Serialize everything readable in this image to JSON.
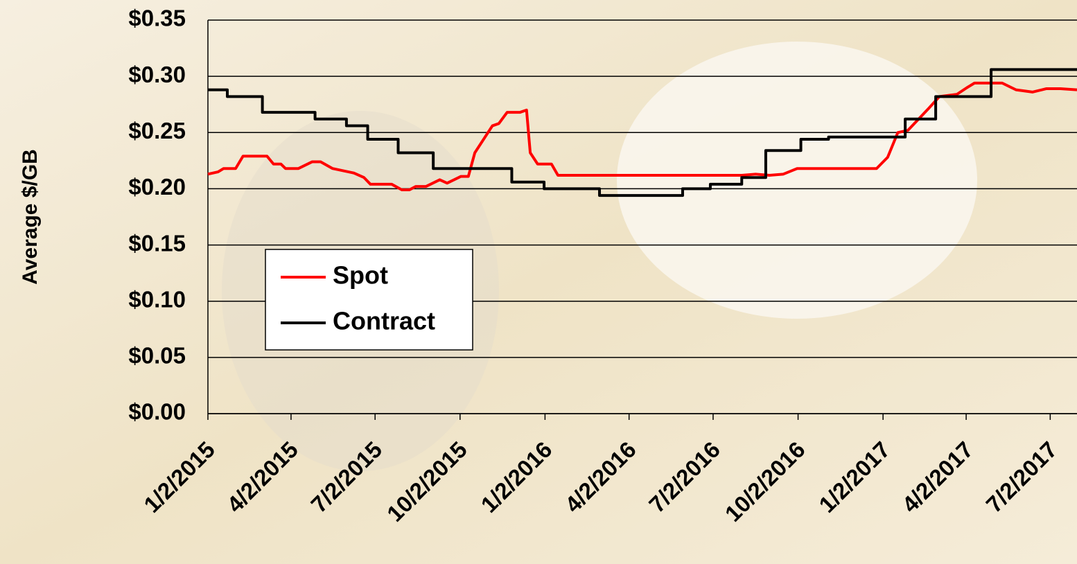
{
  "chart_data": {
    "type": "line",
    "y_label": "Average $/GB",
    "ylim": [
      0,
      0.35
    ],
    "yticks": [
      {
        "value": 0,
        "label": "$0.00"
      },
      {
        "value": 0.05,
        "label": "$0.05"
      },
      {
        "value": 0.1,
        "label": "$0.10"
      },
      {
        "value": 0.15,
        "label": "$0.15"
      },
      {
        "value": 0.2,
        "label": "$0.20"
      },
      {
        "value": 0.25,
        "label": "$0.25"
      },
      {
        "value": 0.3,
        "label": "$0.30"
      },
      {
        "value": 0.35,
        "label": "$0.35"
      }
    ],
    "xlim": [
      "1/2/2015",
      "7/31/2017"
    ],
    "xticks": [
      "1/2/2015",
      "4/2/2015",
      "7/2/2015",
      "10/2/2015",
      "1/2/2016",
      "4/2/2016",
      "7/2/2016",
      "10/2/2016",
      "1/2/2017",
      "4/2/2017",
      "7/2/2017"
    ],
    "grid": true,
    "series": [
      {
        "name": "Spot",
        "color": "#ff0000",
        "step": false,
        "x": [
          "1/2/2015",
          "1/13/2015",
          "1/19/2015",
          "2/1/2015",
          "2/9/2015",
          "3/7/2015",
          "3/14/2015",
          "3/22/2015",
          "3/27/2015",
          "4/10/2015",
          "4/25/2015",
          "5/4/2015",
          "5/17/2015",
          "6/9/2015",
          "6/20/2015",
          "6/27/2015",
          "7/20/2015",
          "7/31/2015",
          "8/8/2015",
          "8/15/2015",
          "8/26/2015",
          "9/10/2015",
          "9/18/2015",
          "10/3/2015",
          "10/11/2015",
          "10/18/2015",
          "11/6/2015",
          "11/13/2015",
          "11/22/2015",
          "12/6/2015",
          "12/13/2015",
          "12/17/2015",
          "12/25/2015",
          "1/9/2016",
          "1/16/2016",
          "8/2/2016",
          "8/17/2016",
          "9/1/2016",
          "9/16/2016",
          "10/1/2016",
          "12/26/2016",
          "1/7/2017",
          "1/18/2017",
          "1/29/2017",
          "2/21/2017",
          "3/4/2017",
          "3/23/2017",
          "4/3/2017",
          "4/11/2017",
          "5/11/2017",
          "5/26/2017",
          "6/13/2017",
          "6/28/2017",
          "7/13/2017",
          "7/31/2017"
        ],
        "values": [
          0.213,
          0.215,
          0.218,
          0.218,
          0.229,
          0.229,
          0.222,
          0.222,
          0.218,
          0.218,
          0.224,
          0.224,
          0.218,
          0.214,
          0.21,
          0.204,
          0.204,
          0.199,
          0.199,
          0.202,
          0.202,
          0.208,
          0.205,
          0.211,
          0.211,
          0.232,
          0.256,
          0.258,
          0.268,
          0.268,
          0.27,
          0.232,
          0.222,
          0.222,
          0.212,
          0.212,
          0.213,
          0.212,
          0.213,
          0.218,
          0.218,
          0.228,
          0.25,
          0.252,
          0.272,
          0.282,
          0.284,
          0.29,
          0.294,
          0.294,
          0.288,
          0.286,
          0.289,
          0.289,
          0.288
        ]
      },
      {
        "name": "Contract",
        "color": "#000000",
        "step": true,
        "x": [
          "1/2/2015",
          "1/23/2015",
          "3/2/2015",
          "4/28/2015",
          "6/1/2015",
          "6/24/2015",
          "7/27/2015",
          "9/3/2015",
          "11/27/2015",
          "1/1/2016",
          "3/1/2016",
          "5/30/2016",
          "6/29/2016",
          "8/2/2016",
          "8/28/2016",
          "10/5/2016",
          "11/4/2016",
          "1/26/2017",
          "2/28/2017",
          "4/29/2017",
          "7/31/2017"
        ],
        "values": [
          0.288,
          0.282,
          0.268,
          0.262,
          0.256,
          0.244,
          0.232,
          0.218,
          0.206,
          0.2,
          0.194,
          0.2,
          0.204,
          0.21,
          0.234,
          0.244,
          0.246,
          0.262,
          0.282,
          0.306,
          0.306
        ]
      }
    ]
  }
}
